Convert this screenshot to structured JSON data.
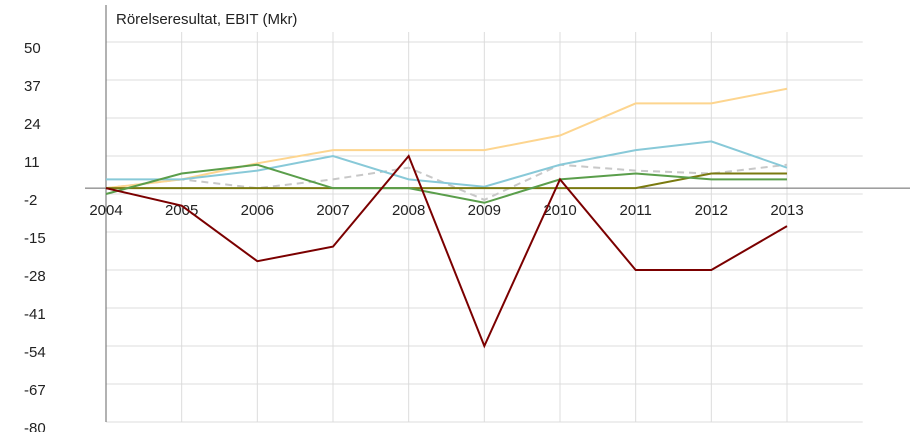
{
  "chart_data": {
    "type": "line",
    "title": "Rörelseresultat, EBIT (Mkr)",
    "x": [
      2004,
      2005,
      2006,
      2007,
      2008,
      2009,
      2010,
      2011,
      2012,
      2013
    ],
    "xlim": [
      2004,
      2013
    ],
    "xticks": [
      2004,
      2005,
      2006,
      2007,
      2008,
      2009,
      2010,
      2011,
      2012,
      2013
    ],
    "ylim": [
      -80,
      50
    ],
    "yticks": [
      50,
      37,
      24,
      11,
      -2,
      -15,
      -28,
      -41,
      -54,
      -67,
      -80
    ],
    "grid": true,
    "series": [
      {
        "color": "#c8c8c8",
        "dashed": true,
        "values": [
          0,
          3,
          0,
          3,
          7,
          -4,
          8,
          6,
          5,
          8
        ]
      },
      {
        "color": "#fdd58f",
        "values": [
          0,
          3,
          8.5,
          13,
          13,
          13,
          18,
          29,
          29,
          34
        ]
      },
      {
        "color": "#88c9d8",
        "values": [
          3,
          3,
          6,
          11,
          3,
          0.5,
          8,
          13,
          16,
          7
        ]
      },
      {
        "color": "#7a7a10",
        "values": [
          0,
          0,
          0,
          0,
          0,
          0,
          0,
          0,
          5,
          5
        ]
      },
      {
        "color": "#5a9e4b",
        "values": [
          -2,
          5,
          8,
          0,
          0,
          -5,
          3,
          5,
          3,
          3
        ]
      },
      {
        "color": "#7b0000",
        "values": [
          0,
          -6,
          -25,
          -20,
          11,
          -54,
          3,
          -28,
          -28,
          -13
        ]
      }
    ]
  }
}
